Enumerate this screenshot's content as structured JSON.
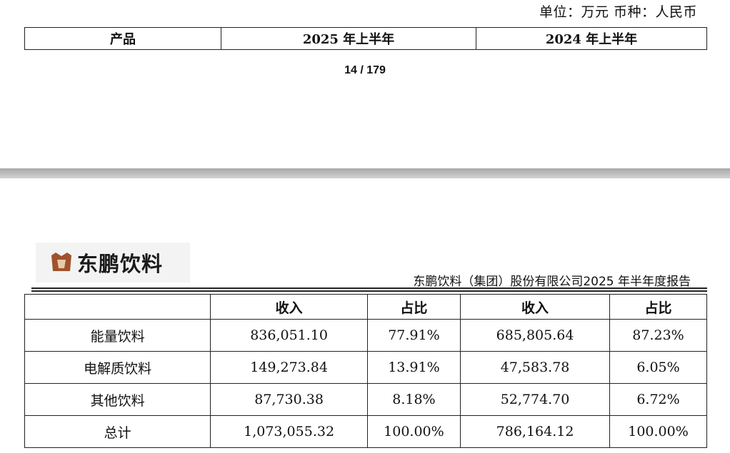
{
  "unit_line": "单位：万元 币种：人民币",
  "top_table": {
    "col_product": "产品",
    "col_2025": "2025 年上半年",
    "col_2024": "2024 年上半年"
  },
  "page_number": "14 / 179",
  "logo_text": "东鹏饮料",
  "report_title": "东鹏饮料（集团）股份有限公司2025 年半年度报告",
  "table": {
    "headers": [
      "",
      "收入",
      "占比",
      "收入",
      "占比"
    ],
    "rows": [
      {
        "product": "能量饮料",
        "rev_2025": "836,051.10",
        "share_2025": "77.91%",
        "rev_2024": "685,805.64",
        "share_2024": "87.23%"
      },
      {
        "product": "电解质饮料",
        "rev_2025": "149,273.84",
        "share_2025": "13.91%",
        "rev_2024": "47,583.78",
        "share_2024": "6.05%"
      },
      {
        "product": "其他饮料",
        "rev_2025": "87,730.38",
        "share_2025": "8.18%",
        "rev_2024": "52,774.70",
        "share_2024": "6.72%"
      },
      {
        "product": "总计",
        "rev_2025": "1,073,055.32",
        "share_2025": "100.00%",
        "rev_2024": "786,164.12",
        "share_2024": "100.00%"
      }
    ]
  },
  "colors": {
    "page_gap": "#b9b9b9",
    "logo_mark": "#a0522d",
    "logo_bg": "#f3f3f3"
  }
}
